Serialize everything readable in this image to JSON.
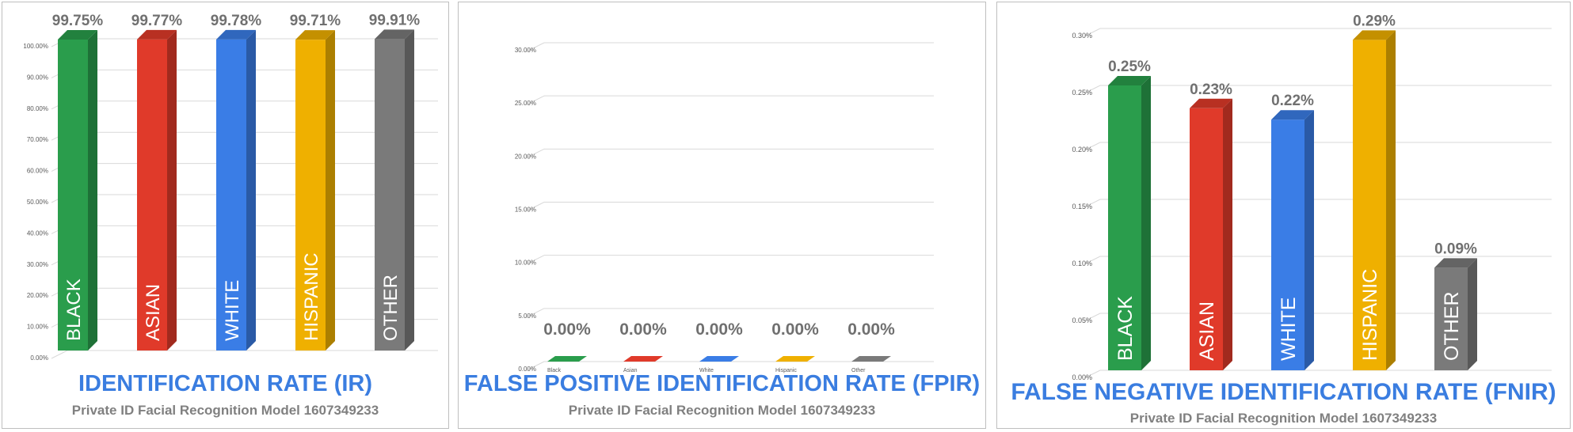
{
  "chart_data": [
    {
      "type": "bar",
      "title": "IDENTIFICATION RATE (IR)",
      "subtitle": "Private ID Facial Recognition Model 1607349233",
      "categories": [
        "BLACK",
        "ASIAN",
        "WHITE",
        "HISPANIC",
        "OTHER"
      ],
      "values": [
        99.75,
        99.77,
        99.78,
        99.71,
        99.91
      ],
      "data_labels": [
        "99.75%",
        "99.77%",
        "99.78%",
        "99.71%",
        "99.91%"
      ],
      "yticks": [
        "0.00%",
        "10.00%",
        "20.00%",
        "30.00%",
        "40.00%",
        "50.00%",
        "60.00%",
        "70.00%",
        "80.00%",
        "90.00%",
        "100.00%"
      ],
      "ylim": [
        0,
        100
      ],
      "category_labels_inside_bars": true,
      "grid": true
    },
    {
      "type": "bar",
      "title": "FALSE POSITIVE IDENTIFICATION RATE (FPIR)",
      "subtitle": "Private ID Facial Recognition Model 1607349233",
      "categories": [
        "Black",
        "Asian",
        "White",
        "Hispanic",
        "Other"
      ],
      "values": [
        0,
        0,
        0,
        0,
        0
      ],
      "data_labels": [
        "0.00%",
        "0.00%",
        "0.00%",
        "0.00%",
        "0.00%"
      ],
      "yticks": [
        "0.00%",
        "5.00%",
        "10.00%",
        "15.00%",
        "20.00%",
        "25.00%",
        "30.00%"
      ],
      "ylim": [
        0,
        30
      ],
      "category_labels_inside_bars": false,
      "grid": true
    },
    {
      "type": "bar",
      "title": "FALSE NEGATIVE IDENTIFICATION RATE (FNIR)",
      "subtitle": "Private ID Facial Recognition Model 1607349233",
      "categories": [
        "BLACK",
        "ASIAN",
        "WHITE",
        "HISPANIC",
        "OTHER"
      ],
      "values": [
        0.25,
        0.23,
        0.22,
        0.29,
        0.09
      ],
      "data_labels": [
        "0.25%",
        "0.23%",
        "0.22%",
        "0.29%",
        "0.09%"
      ],
      "yticks": [
        "0.00%",
        "0.05%",
        "0.10%",
        "0.15%",
        "0.20%",
        "0.25%",
        "0.30%"
      ],
      "ylim": [
        0,
        0.3
      ],
      "category_labels_inside_bars": true,
      "grid": true
    }
  ],
  "colors": {
    "bars": [
      "#2a9d4c",
      "#e03a2a",
      "#3a7de6",
      "#efb000",
      "#7a7a7a"
    ],
    "title": "#3a7de0",
    "subtitle": "#808080",
    "value_label": "#707070",
    "grid": "#d9d9d9"
  }
}
